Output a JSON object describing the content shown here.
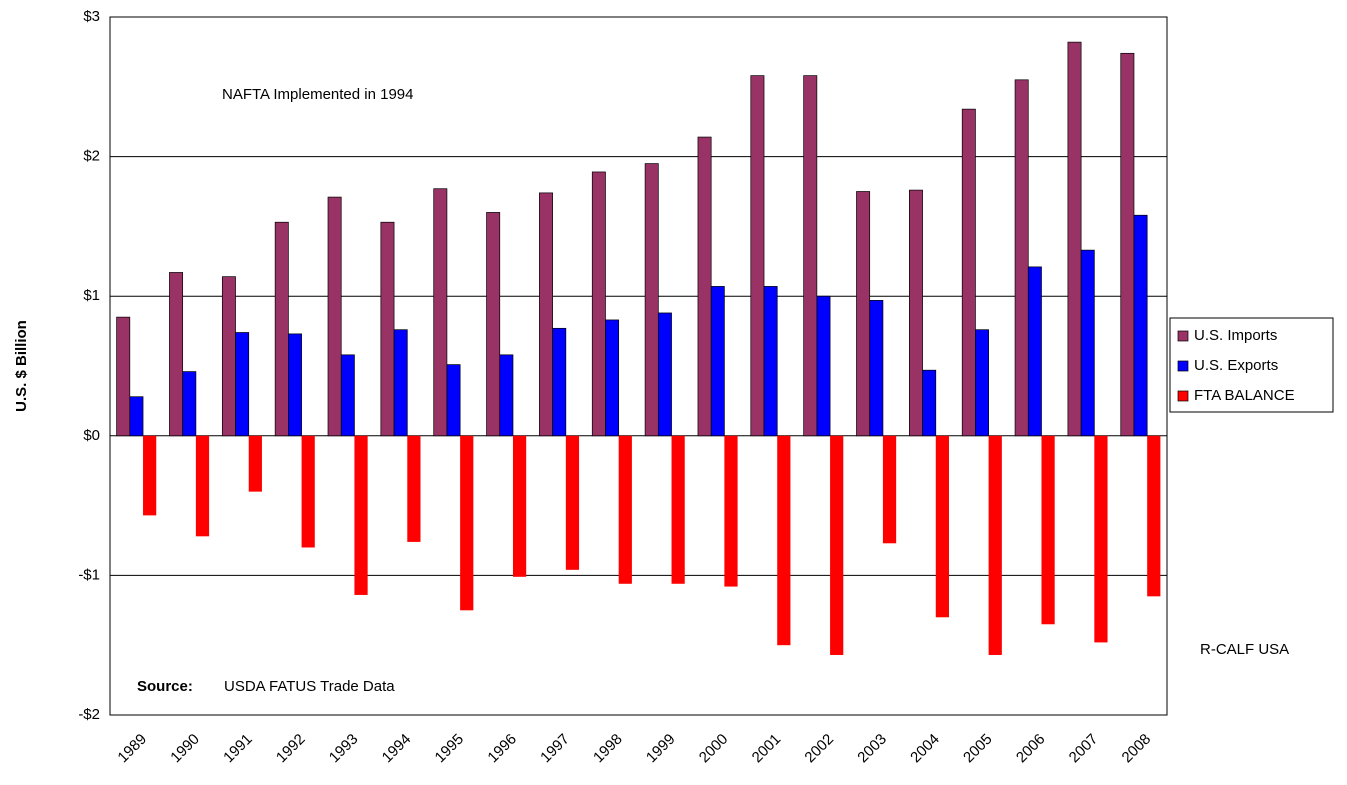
{
  "chart_data": {
    "type": "bar",
    "y_label": "U.S. $ Billion",
    "annotations": {
      "nafta": "NAFTA Implemented in 1994",
      "source_label": "Source:",
      "source": "USDA FATUS Trade Data",
      "credit": "R-CALF USA"
    },
    "categories": [
      "1989",
      "1990",
      "1991",
      "1992",
      "1993",
      "1994",
      "1995",
      "1996",
      "1997",
      "1998",
      "1999",
      "2000",
      "2001",
      "2002",
      "2003",
      "2004",
      "2005",
      "2006",
      "2007",
      "2008"
    ],
    "series": [
      {
        "name": "U.S. Imports",
        "color": "#993366",
        "values": [
          0.85,
          1.17,
          1.14,
          1.53,
          1.71,
          1.53,
          1.77,
          1.6,
          1.74,
          1.89,
          1.95,
          2.14,
          2.58,
          2.58,
          1.75,
          1.76,
          2.34,
          2.55,
          2.82,
          2.74
        ]
      },
      {
        "name": "U.S. Exports",
        "color": "#0000ff",
        "values": [
          0.28,
          0.46,
          0.74,
          0.73,
          0.58,
          0.76,
          0.51,
          0.58,
          0.77,
          0.83,
          0.88,
          1.07,
          1.07,
          1.0,
          0.97,
          0.47,
          0.76,
          1.21,
          1.33,
          1.58
        ]
      },
      {
        "name": "FTA BALANCE",
        "color": "#ff0000",
        "values": [
          -0.57,
          -0.72,
          -0.4,
          -0.8,
          -1.14,
          -0.76,
          -1.25,
          -1.01,
          -0.96,
          -1.06,
          -1.06,
          -1.08,
          -1.5,
          -1.57,
          -0.77,
          -1.3,
          -1.57,
          -1.35,
          -1.48,
          -1.15
        ]
      }
    ],
    "ylim": [
      -2,
      3
    ],
    "yticks": [
      {
        "value": -2,
        "label": "-$2"
      },
      {
        "value": -1,
        "label": "-$1"
      },
      {
        "value": 0,
        "label": "$0"
      },
      {
        "value": 1,
        "label": "$1"
      },
      {
        "value": 2,
        "label": "$2"
      },
      {
        "value": 3,
        "label": "$3"
      }
    ],
    "grid": true,
    "legend": "right"
  }
}
